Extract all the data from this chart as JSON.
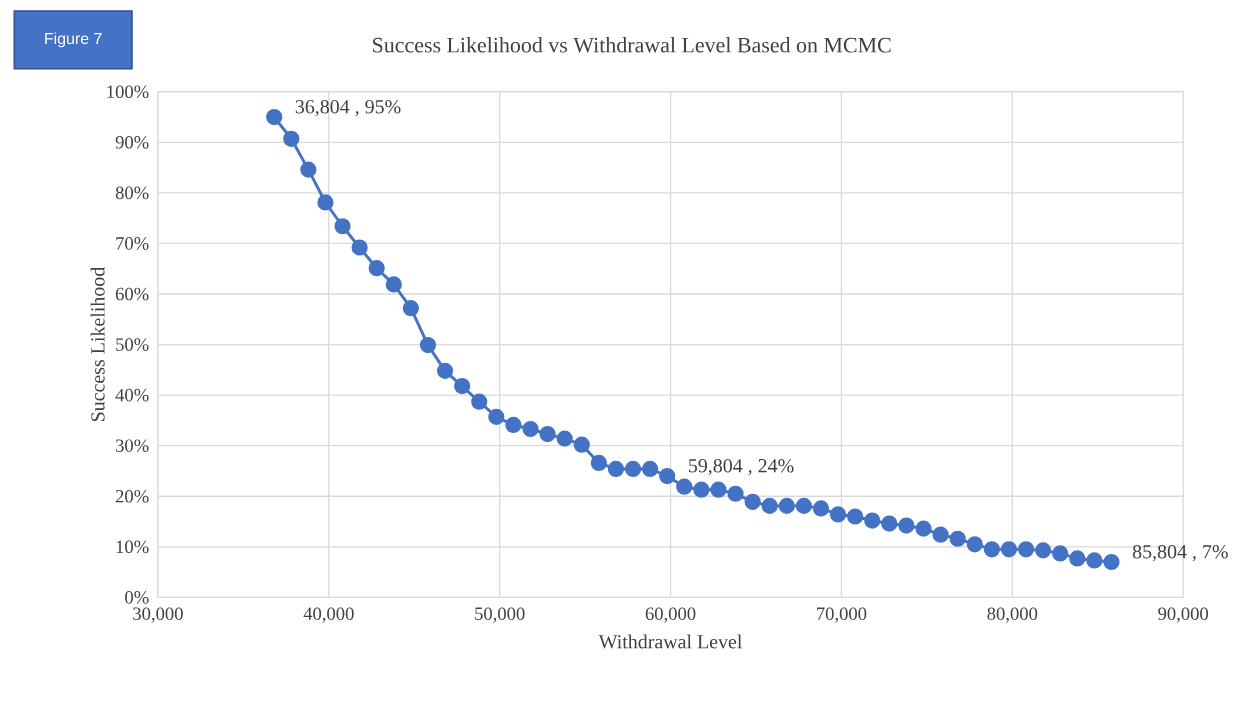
{
  "chart_data": {
    "type": "line",
    "title": "Success Likelihood vs Withdrawal Level Based on MCMC",
    "xlabel": "Withdrawal Level",
    "ylabel": "Success Likelihood",
    "annotations": [
      "Figure 7"
    ],
    "x": [
      36804,
      37804,
      38804,
      39804,
      40804,
      41804,
      42804,
      43804,
      44804,
      45804,
      46804,
      47804,
      48804,
      49804,
      50804,
      51804,
      52804,
      53804,
      54804,
      55804,
      56804,
      57804,
      58804,
      59804,
      60804,
      61804,
      62804,
      63804,
      64804,
      65804,
      66804,
      67804,
      68804,
      69804,
      70804,
      71804,
      72804,
      73804,
      74804,
      75804,
      76804,
      77804,
      78804,
      79804,
      80804,
      81804,
      82804,
      83804,
      84804,
      85804
    ],
    "series": [
      {
        "color": "#4472c4",
        "values": [
          95,
          90.7,
          84.6,
          78.1,
          73.4,
          69.2,
          65.1,
          61.9,
          57.2,
          49.9,
          44.8,
          41.8,
          38.7,
          35.7,
          34.1,
          33.3,
          32.3,
          31.4,
          30.2,
          26.6,
          25.4,
          25.4,
          25.4,
          24,
          21.9,
          21.3,
          21.3,
          20.5,
          18.9,
          18.1,
          18.1,
          18.1,
          17.6,
          16.4,
          16.0,
          15.2,
          14.6,
          14.2,
          13.6,
          12.4,
          11.6,
          10.5,
          9.5,
          9.5,
          9.5,
          9.3,
          8.7,
          7.7,
          7.3,
          7
        ],
        "value_labels": [
          "36,804 , 95%",
          null,
          null,
          null,
          null,
          null,
          null,
          null,
          null,
          null,
          null,
          null,
          null,
          null,
          null,
          null,
          null,
          null,
          null,
          null,
          null,
          null,
          null,
          "59,804 , 24%",
          null,
          null,
          null,
          null,
          null,
          null,
          null,
          null,
          null,
          null,
          null,
          null,
          null,
          null,
          null,
          null,
          null,
          null,
          null,
          null,
          null,
          null,
          null,
          null,
          null,
          "85,804 , 7%"
        ]
      }
    ],
    "xlim": [
      30000,
      90000
    ],
    "ylim": [
      0,
      100
    ],
    "xticks": [
      {
        "value": 30000,
        "label": "30,000"
      },
      {
        "value": 40000,
        "label": "40,000"
      },
      {
        "value": 50000,
        "label": "50,000"
      },
      {
        "value": 60000,
        "label": "60,000"
      },
      {
        "value": 70000,
        "label": "70,000"
      },
      {
        "value": 80000,
        "label": "80,000"
      },
      {
        "value": 90000,
        "label": "90,000"
      }
    ],
    "yticks": [
      {
        "value": 0,
        "label": "0%"
      },
      {
        "value": 10,
        "label": "10%"
      },
      {
        "value": 20,
        "label": "20%"
      },
      {
        "value": 30,
        "label": "30%"
      },
      {
        "value": 40,
        "label": "40%"
      },
      {
        "value": 50,
        "label": "50%"
      },
      {
        "value": 60,
        "label": "60%"
      },
      {
        "value": 70,
        "label": "70%"
      },
      {
        "value": 80,
        "label": "80%"
      },
      {
        "value": 90,
        "label": "90%"
      },
      {
        "value": 100,
        "label": "100%"
      }
    ],
    "grid": true,
    "marker": "circle",
    "line_style": "solid"
  }
}
